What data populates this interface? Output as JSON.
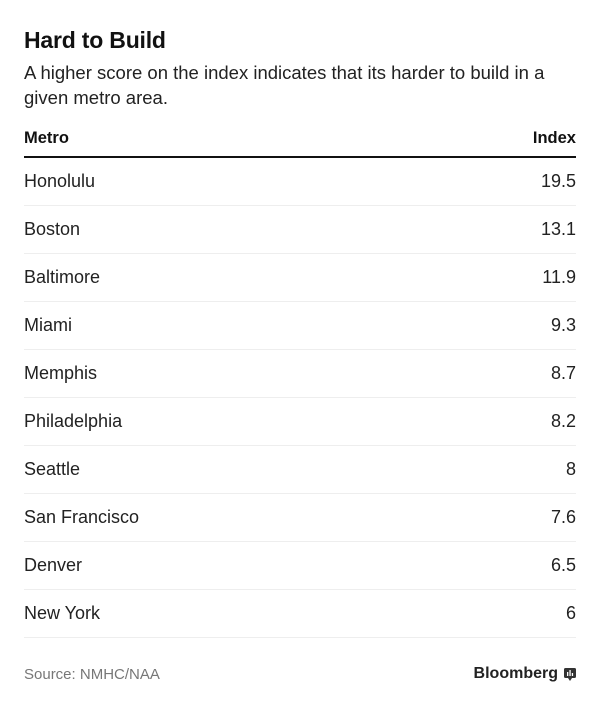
{
  "chart_data": {
    "type": "table",
    "title": "Hard to Build",
    "subtitle": "A higher score on the index indicates that its harder to build in a given metro area.",
    "columns": [
      "Metro",
      "Index"
    ],
    "rows": [
      {
        "metro": "Honolulu",
        "index": "19.5"
      },
      {
        "metro": "Boston",
        "index": "13.1"
      },
      {
        "metro": "Baltimore",
        "index": "11.9"
      },
      {
        "metro": "Miami",
        "index": "9.3"
      },
      {
        "metro": "Memphis",
        "index": "8.7"
      },
      {
        "metro": "Philadelphia",
        "index": "8.2"
      },
      {
        "metro": "Seattle",
        "index": "8"
      },
      {
        "metro": "San Francisco",
        "index": "7.6"
      },
      {
        "metro": "Denver",
        "index": "6.5"
      },
      {
        "metro": "New York",
        "index": "6"
      }
    ],
    "source": "Source: NMHC/NAA",
    "brand": "Bloomberg"
  }
}
